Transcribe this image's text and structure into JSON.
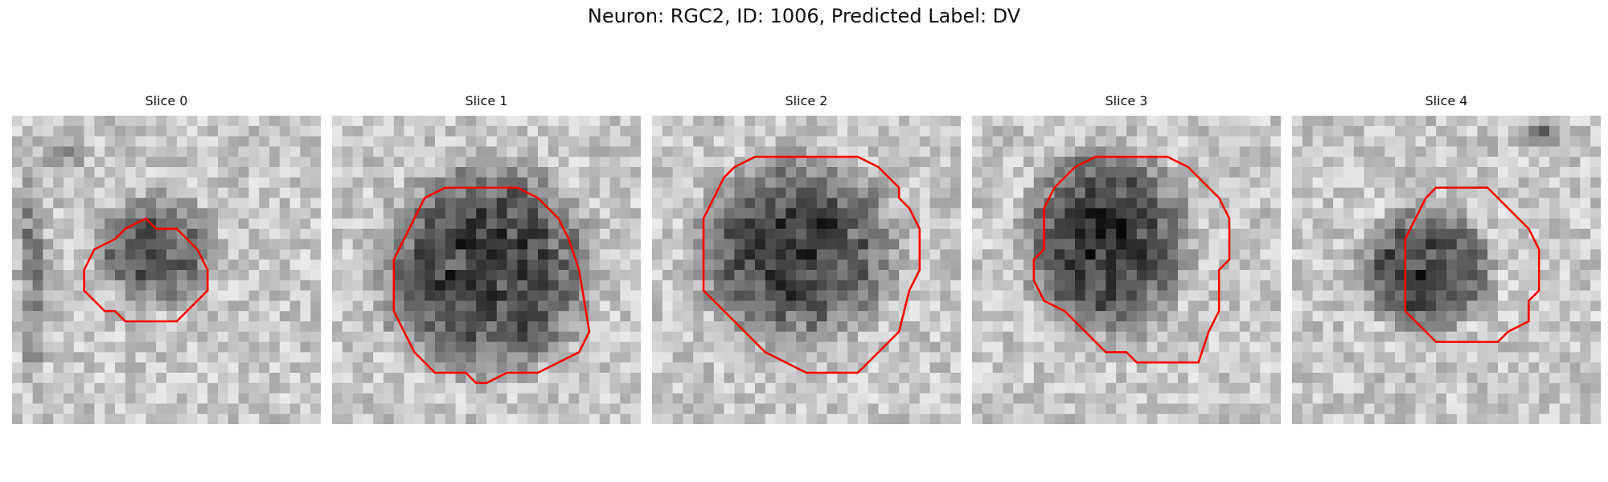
{
  "figure": {
    "title": "Neuron: RGC2, ID: 1006, Predicted Label: DV",
    "outline_color": "#ff0000"
  },
  "panels": [
    {
      "title": "Slice 0",
      "image": "grayscale-microscopy-tile",
      "outline": "red-contour"
    },
    {
      "title": "Slice 1",
      "image": "grayscale-microscopy-tile",
      "outline": "red-contour"
    },
    {
      "title": "Slice 2",
      "image": "grayscale-microscopy-tile",
      "outline": "red-contour"
    },
    {
      "title": "Slice 3",
      "image": "grayscale-microscopy-tile",
      "outline": "red-contour"
    },
    {
      "title": "Slice 4",
      "image": "grayscale-microscopy-tile",
      "outline": "red-contour"
    }
  ]
}
